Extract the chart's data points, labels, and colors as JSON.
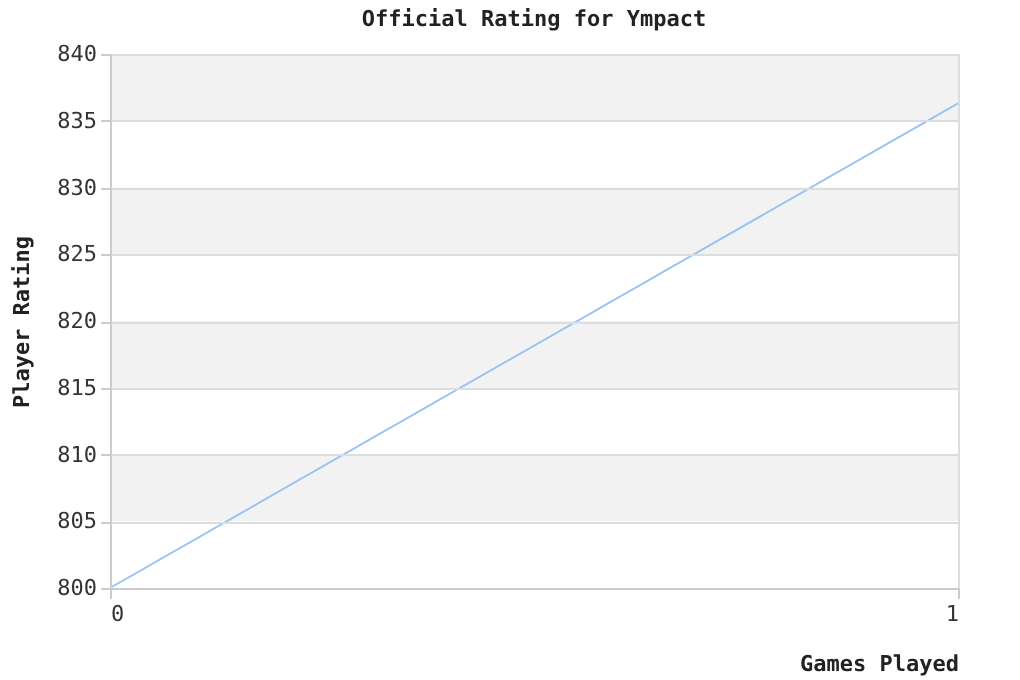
{
  "chart_data": {
    "type": "line",
    "title": "Official Rating for Ympact",
    "xlabel": "Games Played",
    "ylabel": "Player Rating",
    "x": [
      0,
      1
    ],
    "series": [
      {
        "color": "#99c4f2",
        "values": [
          800,
          836.3
        ]
      }
    ],
    "xlim": [
      0,
      1
    ],
    "xticks": [
      0,
      1
    ],
    "ylim": [
      800,
      840
    ],
    "yticks": [
      800,
      805,
      810,
      815,
      820,
      825,
      830,
      835,
      840
    ],
    "grid": "y",
    "marker": "none",
    "line_style": "solid"
  }
}
